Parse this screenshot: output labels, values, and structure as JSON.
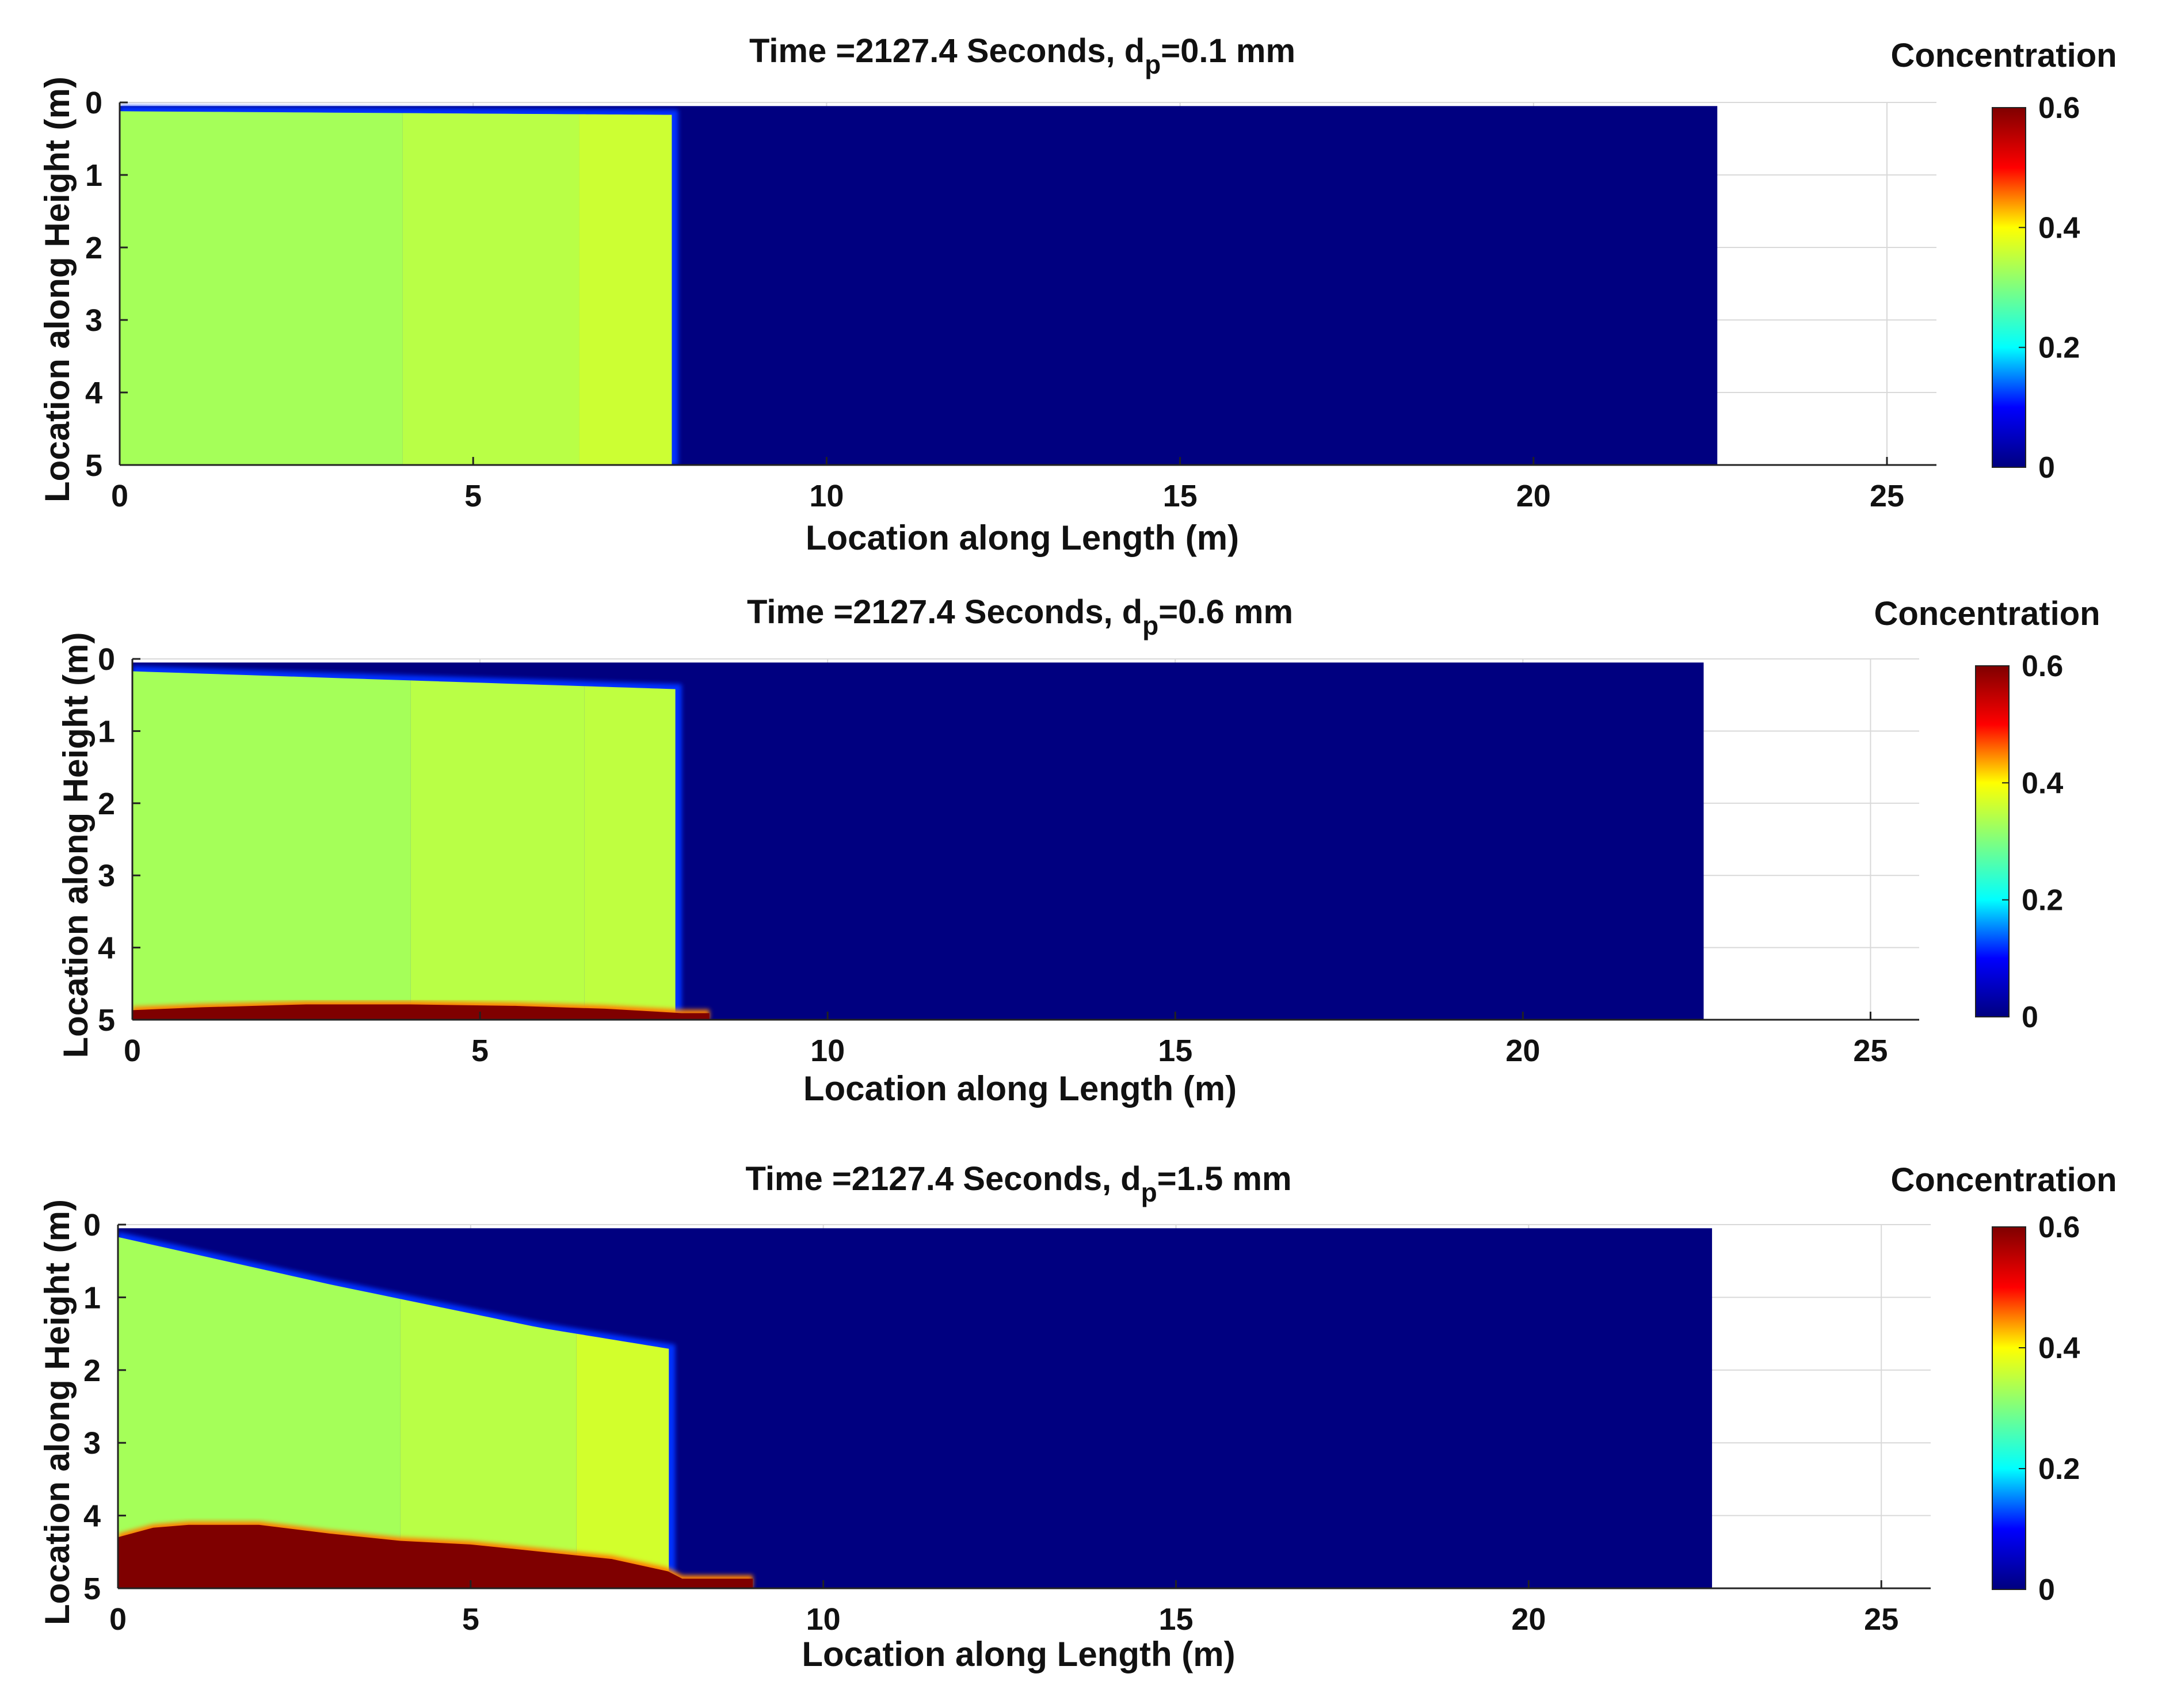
{
  "figure": {
    "colorbar_label": "Concentration",
    "colormap": "jet",
    "colormap_stops": [
      "#00007f",
      "#0000ff",
      "#00ffff",
      "#7fff7f",
      "#ffff00",
      "#ff0000",
      "#7f0000"
    ],
    "fluid_color": "#000080",
    "grid_color": "#d9d9d9"
  },
  "chart_data": [
    {
      "type": "heatmap",
      "title": "Time =2127.4 Seconds, d",
      "title_subscript": "p",
      "title_suffix": "=0.1 mm",
      "xlabel": "Location along Length (m)",
      "ylabel": "Location along Height (m)",
      "xlim": [
        0,
        25.7
      ],
      "ylim": [
        0,
        5
      ],
      "y_reversed": true,
      "xticks": [
        0,
        5,
        10,
        15,
        20,
        25
      ],
      "yticks": [
        0,
        1,
        2,
        3,
        4,
        5
      ],
      "grid": true,
      "domain_x": [
        0,
        22.6
      ],
      "domain_top": 0.05,
      "colorbar": {
        "label": "Concentration",
        "range": [
          0,
          0.6
        ],
        "ticks": [
          0,
          0.2,
          0.4,
          0.6
        ]
      },
      "current": {
        "front_x": 7.9,
        "surface": [
          [
            0,
            0.05
          ],
          [
            7.9,
            0.1
          ]
        ],
        "zones": [
          {
            "x": [
              0,
              4.0
            ],
            "concentration": 0.33
          },
          {
            "x": [
              4.0,
              6.5
            ],
            "concentration": 0.345
          },
          {
            "x": [
              6.5,
              7.9
            ],
            "concentration": 0.36
          }
        ]
      },
      "deposit": []
    },
    {
      "type": "heatmap",
      "title": "Time =2127.4 Seconds, d",
      "title_subscript": "p",
      "title_suffix": "=0.6 mm",
      "xlabel": "Location along Length (m)",
      "ylabel": "Location along Height (m)",
      "xlim": [
        0,
        25.7
      ],
      "ylim": [
        0,
        5
      ],
      "y_reversed": true,
      "xticks": [
        0,
        5,
        10,
        15,
        20,
        25
      ],
      "yticks": [
        0,
        1,
        2,
        3,
        4,
        5
      ],
      "grid": true,
      "domain_x": [
        0,
        22.6
      ],
      "domain_top": 0.05,
      "colorbar": {
        "label": "Concentration",
        "range": [
          0,
          0.6
        ],
        "ticks": [
          0,
          0.2,
          0.4,
          0.6
        ]
      },
      "current": {
        "front_x": 7.9,
        "surface": [
          [
            0,
            0.1
          ],
          [
            7.9,
            0.35
          ]
        ],
        "zones": [
          {
            "x": [
              0,
              4.0
            ],
            "concentration": 0.33
          },
          {
            "x": [
              4.0,
              6.5
            ],
            "concentration": 0.345
          },
          {
            "x": [
              6.5,
              7.9
            ],
            "concentration": 0.35
          }
        ]
      },
      "deposit": [
        [
          0,
          4.82
        ],
        [
          1.0,
          4.78
        ],
        [
          2.5,
          4.74
        ],
        [
          4.0,
          4.74
        ],
        [
          5.5,
          4.76
        ],
        [
          6.8,
          4.8
        ],
        [
          7.9,
          4.86
        ],
        [
          8.3,
          4.86
        ],
        [
          8.3,
          5.0
        ]
      ]
    },
    {
      "type": "heatmap",
      "title": "Time =2127.4 Seconds, d",
      "title_subscript": "p",
      "title_suffix": "=1.5 mm",
      "xlabel": "Location along Length (m)",
      "ylabel": "Location along Height (m)",
      "xlim": [
        0,
        25.7
      ],
      "ylim": [
        0,
        5
      ],
      "y_reversed": true,
      "xticks": [
        0,
        5,
        10,
        15,
        20,
        25
      ],
      "yticks": [
        0,
        1,
        2,
        3,
        4,
        5
      ],
      "grid": true,
      "domain_x": [
        0,
        22.6
      ],
      "domain_top": 0.05,
      "colorbar": {
        "label": "Concentration",
        "range": [
          0,
          0.6
        ],
        "ticks": [
          0,
          0.2,
          0.4,
          0.6
        ]
      },
      "current": {
        "front_x": 7.9,
        "surface": [
          [
            0,
            0.1
          ],
          [
            3.0,
            0.75
          ],
          [
            6.0,
            1.35
          ],
          [
            7.9,
            1.65
          ]
        ],
        "zones": [
          {
            "x": [
              0,
              4.0
            ],
            "concentration": 0.33
          },
          {
            "x": [
              4.0,
              6.5
            ],
            "concentration": 0.345
          },
          {
            "x": [
              6.5,
              7.9
            ],
            "concentration": 0.365
          }
        ]
      },
      "deposit": [
        [
          0,
          4.25
        ],
        [
          0.5,
          4.12
        ],
        [
          1.0,
          4.08
        ],
        [
          2.0,
          4.08
        ],
        [
          3.0,
          4.2
        ],
        [
          4.0,
          4.3
        ],
        [
          5.0,
          4.35
        ],
        [
          6.0,
          4.45
        ],
        [
          7.0,
          4.55
        ],
        [
          7.8,
          4.72
        ],
        [
          8.0,
          4.82
        ],
        [
          9.0,
          4.82
        ],
        [
          9.0,
          5.0
        ]
      ]
    }
  ]
}
